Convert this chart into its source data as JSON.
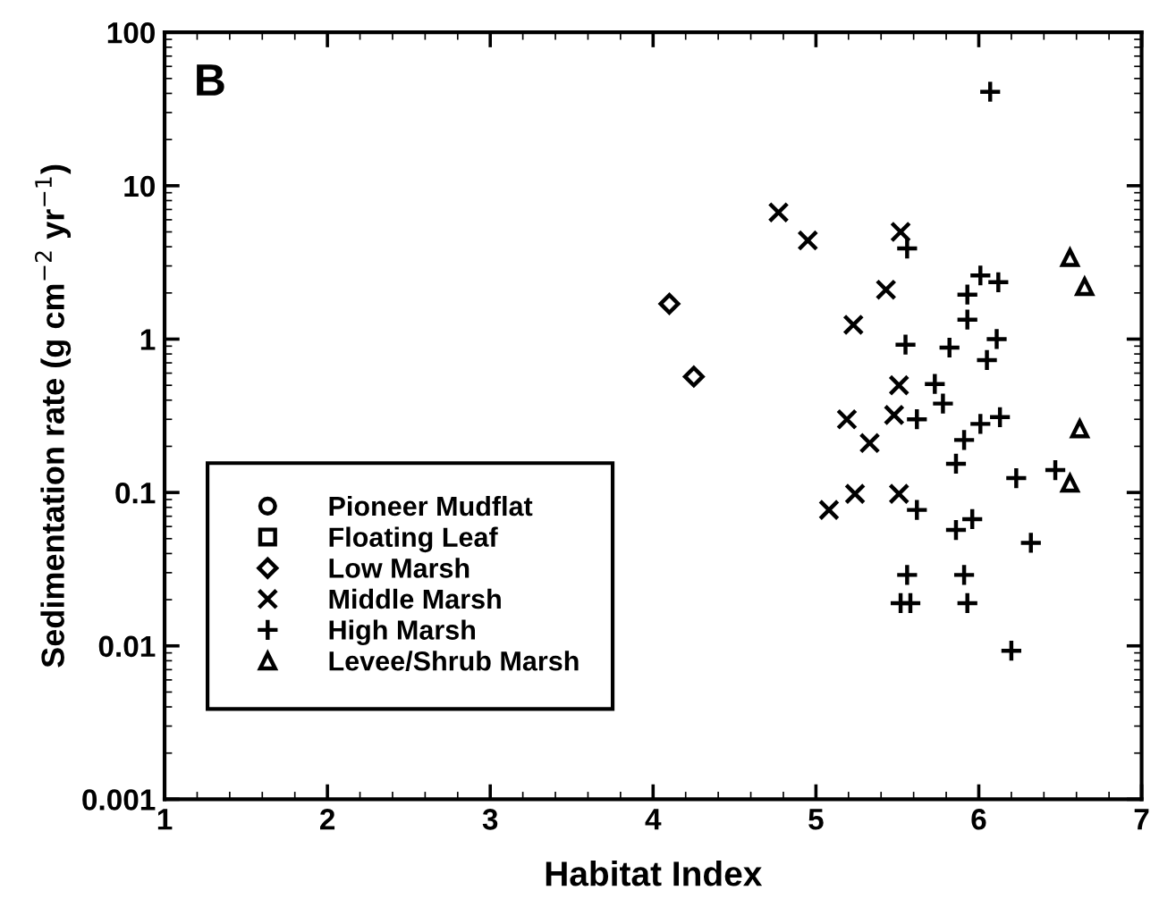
{
  "chart_data": {
    "type": "scatter",
    "xlabel": "Habitat Index",
    "ylabel": "Sedimentation rate (g cm$^{−2}$ yr$^{−1}$)",
    "annotations": [
      "B"
    ],
    "log": "y",
    "xlim": [
      1,
      7
    ],
    "xticks": [
      1,
      2,
      3,
      4,
      5,
      6,
      7
    ],
    "ylim": [
      0.001,
      100
    ],
    "yticks": [
      0.001,
      0.01,
      0.1,
      1,
      10,
      100
    ],
    "grid": false,
    "legend": "bottom left",
    "series": [
      {
        "name": "Pioneer Mudflat",
        "color": "#000000",
        "marker": "circle"
      },
      {
        "name": "Floating Leaf",
        "color": "#000000",
        "marker": "square"
      },
      {
        "name": "Low Marsh",
        "color": "#000000",
        "marker": "diamond",
        "x": [
          4.1,
          4.25
        ],
        "values": [
          1.7,
          0.57
        ]
      },
      {
        "name": "Middle Marsh",
        "color": "#000000",
        "marker": "cross",
        "x": [
          4.77,
          4.95,
          5.52,
          5.43,
          5.23,
          5.51,
          5.48,
          5.19,
          5.33,
          5.08,
          5.24,
          5.51
        ],
        "values": [
          6.7,
          4.4,
          5.0,
          2.1,
          1.24,
          0.5,
          0.32,
          0.3,
          0.21,
          0.077,
          0.098,
          0.098
        ]
      },
      {
        "name": "High Marsh",
        "color": "#000000",
        "marker": "plus",
        "x": [
          6.07,
          5.56,
          6.01,
          6.12,
          5.93,
          5.93,
          5.55,
          5.82,
          6.11,
          6.05,
          5.73,
          5.78,
          5.62,
          6.01,
          6.13,
          5.91,
          5.86,
          6.23,
          5.62,
          5.86,
          5.96,
          6.32,
          5.56,
          5.91,
          5.52,
          5.58,
          5.93,
          6.2,
          6.47
        ],
        "values": [
          41,
          3.9,
          2.6,
          2.35,
          1.95,
          1.34,
          0.92,
          0.88,
          1.0,
          0.73,
          0.51,
          0.38,
          0.3,
          0.28,
          0.31,
          0.22,
          0.154,
          0.124,
          0.077,
          0.057,
          0.067,
          0.047,
          0.029,
          0.029,
          0.019,
          0.019,
          0.019,
          0.0093,
          0.14
        ]
      },
      {
        "name": "Levee/Shrub Marsh",
        "color": "#000000",
        "marker": "triangle",
        "x": [
          6.56,
          6.65,
          6.62,
          6.56
        ],
        "values": [
          3.4,
          2.2,
          0.26,
          0.115
        ]
      }
    ]
  }
}
